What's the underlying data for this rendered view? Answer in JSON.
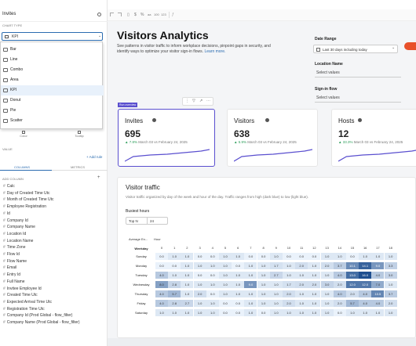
{
  "toolbar": {
    "labels": [
      "aa",
      "100",
      "123"
    ]
  },
  "left": {
    "title": "Invites",
    "chart_type_label": "CHART TYPE",
    "selected_type": "KPI",
    "chart_types": [
      "Bar",
      "Line",
      "Combo",
      "Area",
      "KPI",
      "Donut",
      "Pie",
      "Scatter"
    ],
    "tabs": [
      "Color",
      "Tooltip"
    ],
    "value_label": "VALUE",
    "add_rule": "+ Add rule",
    "col_tabs": [
      "COLUMNS",
      "METRICS"
    ],
    "add_column": "ADD COLUMN",
    "columns": [
      "Calc",
      "Day of Created Time Utc",
      "Month of Created Time Utc",
      "Employee Registration",
      "Id",
      "Company Id",
      "Company Name",
      "Location Id",
      "Location Name",
      "Time Zone",
      "Flow Id",
      "Flow Name",
      "Email",
      "Entry Id",
      "Full Name",
      "Invitee Employee Id",
      "Created Time Utc",
      "Expected Arrival Time Utc",
      "Registration Time Utc",
      "Company Id (Prod Global - flow_filter)",
      "Company Name (Prod Global - flow_filter)"
    ]
  },
  "header": {
    "title": "Visitors Analytics",
    "description": "See patterns in visitor traffic to inform workplace decisions, pinpoint gaps in security, and identify ways to optimize your visitor sign-in flows.",
    "learn_more": "Learn more.",
    "date_range_label": "Date Range",
    "date_range_value": "Last 30 days including today",
    "location_label": "Location Name",
    "location_value": "Select values",
    "signin_label": "Sign-in flow",
    "signin_value": "Select values"
  },
  "kpis": [
    {
      "title": "Invites",
      "value": "695",
      "change": "7.8%",
      "range": "March 03 vs February 24, 2025",
      "selected": true,
      "tag": "Run overview"
    },
    {
      "title": "Visitors",
      "value": "638",
      "change": "5.9%",
      "range": "March 03 vs February 24, 2025",
      "selected": false
    },
    {
      "title": "Hosts",
      "value": "12",
      "change": "33.3%",
      "range": "March 03 vs February 24, 2025",
      "selected": false
    }
  ],
  "traffic": {
    "title": "Visitor traffic",
    "description": "Visitor traffic organized by day of the week and hour of the day. Traffic ranges from high (dark blue) to low (light blue).",
    "busiest_label": "Busiest hours",
    "topn_label": "Top N",
    "topn_value": "24",
    "avg_label": "Average En...",
    "hour_label": "Hour",
    "weekday_label": "Weekday",
    "hours": [
      "0",
      "1",
      "2",
      "3",
      "4",
      "5",
      "6",
      "7",
      "8",
      "9",
      "10",
      "11",
      "12",
      "13",
      "14",
      "15",
      "16",
      "17",
      "18"
    ],
    "days": [
      "Sunday",
      "Monday",
      "Tuesday",
      "Wednesday",
      "Thursday",
      "Friday",
      "Saturday"
    ],
    "values": [
      [
        "0.0",
        "1.0",
        "1.0",
        "0.0",
        "0.0",
        "1.0",
        "1.0",
        "0.0",
        "0.0",
        "1.0",
        "0.0",
        "0.0",
        "0.0",
        "1.0",
        "1.0",
        "0.0",
        "1.0",
        "1.0",
        "1.0"
      ],
      [
        "0.0",
        "0.0",
        "1.0",
        "1.0",
        "1.0",
        "1.0",
        "0.0",
        "1.0",
        "1.0",
        "1.7",
        "1.0",
        "2.0",
        "1.0",
        "2.0",
        "3.7",
        "10.1",
        "14.1",
        "9.0",
        "3.3"
      ],
      [
        "4.0",
        "1.0",
        "1.0",
        "0.0",
        "0.0",
        "1.0",
        "1.0",
        "1.0",
        "1.0",
        "2.7",
        "1.0",
        "1.0",
        "1.0",
        "1.0",
        "4.0",
        "13.0",
        "16.0",
        "4.0",
        "3.0"
      ],
      [
        "8.0",
        "2.8",
        "1.0",
        "1.0",
        "1.0",
        "1.0",
        "1.0",
        "9.0",
        "1.0",
        "1.0",
        "1.7",
        "2.0",
        "2.0",
        "3.0",
        "2.0",
        "12.0",
        "12.0",
        "7.0",
        "1.0"
      ],
      [
        "4.0",
        "5.7",
        "1.0",
        "2.0",
        "0.0",
        "1.0",
        "1.0",
        "1.0",
        "1.0",
        "1.0",
        "2.0",
        "1.0",
        "1.0",
        "1.0",
        "4.0",
        "2.0",
        "4.0",
        "10.5",
        "3.7"
      ],
      [
        "4.0",
        "2.8",
        "2.7",
        "1.0",
        "1.0",
        "0.0",
        "0.0",
        "1.0",
        "1.0",
        "1.0",
        "2.0",
        "1.0",
        "1.0",
        "1.0",
        "2.0",
        "5.7",
        "4.0",
        "4.0",
        "2.0"
      ],
      [
        "1.0",
        "1.0",
        "1.0",
        "1.0",
        "1.0",
        "0.0",
        "0.0",
        "1.0",
        "0.0",
        "1.0",
        "1.0",
        "1.0",
        "1.0",
        "1.0",
        "0.0",
        "1.0",
        "1.0",
        "1.0",
        "1.0"
      ]
    ]
  },
  "colors": {
    "accent": "#5a4fcf",
    "heat_low": "#eaf2fb",
    "heat_high": "#1f4f8f",
    "green": "#2e9e5b",
    "badge": "#e8502a"
  }
}
